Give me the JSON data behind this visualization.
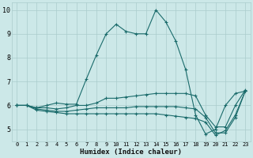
{
  "xlabel": "Humidex (Indice chaleur)",
  "bg_color": "#cce8e8",
  "line_color": "#1a6b6b",
  "grid_color": "#aacccc",
  "xlim": [
    -0.5,
    23.5
  ],
  "ylim": [
    4.5,
    10.3
  ],
  "xticks": [
    0,
    1,
    2,
    3,
    4,
    5,
    6,
    7,
    8,
    9,
    10,
    11,
    12,
    13,
    14,
    15,
    16,
    17,
    18,
    19,
    20,
    21,
    22,
    23
  ],
  "yticks": [
    5,
    6,
    7,
    8,
    9,
    10
  ],
  "lines": [
    {
      "x": [
        0,
        1,
        2,
        3,
        4,
        5,
        6,
        7,
        8,
        9,
        10,
        11,
        12,
        13,
        14,
        15,
        16,
        17,
        18,
        19,
        20,
        21,
        22,
        23
      ],
      "y": [
        6.0,
        6.0,
        5.9,
        6.0,
        6.1,
        6.05,
        6.05,
        7.1,
        8.1,
        9.0,
        9.4,
        9.1,
        9.0,
        9.0,
        10.0,
        9.5,
        8.7,
        7.5,
        5.6,
        4.8,
        5.0,
        6.0,
        6.5,
        6.6
      ]
    },
    {
      "x": [
        0,
        1,
        2,
        3,
        4,
        5,
        6,
        7,
        8,
        9,
        10,
        11,
        12,
        13,
        14,
        15,
        16,
        17,
        18,
        19,
        20,
        21,
        22,
        23
      ],
      "y": [
        6.0,
        6.0,
        5.9,
        5.9,
        5.85,
        5.9,
        6.0,
        6.0,
        6.1,
        6.3,
        6.3,
        6.35,
        6.4,
        6.45,
        6.5,
        6.5,
        6.5,
        6.5,
        6.4,
        5.6,
        5.1,
        5.1,
        6.0,
        6.65
      ]
    },
    {
      "x": [
        0,
        1,
        2,
        3,
        4,
        5,
        6,
        7,
        8,
        9,
        10,
        11,
        12,
        13,
        14,
        15,
        16,
        17,
        18,
        19,
        20,
        21,
        22,
        23
      ],
      "y": [
        6.0,
        6.0,
        5.85,
        5.8,
        5.75,
        5.75,
        5.8,
        5.85,
        5.9,
        5.9,
        5.9,
        5.9,
        5.95,
        5.95,
        5.95,
        5.95,
        5.95,
        5.9,
        5.85,
        5.5,
        4.85,
        4.85,
        5.5,
        6.6
      ]
    },
    {
      "x": [
        0,
        1,
        2,
        3,
        4,
        5,
        6,
        7,
        8,
        9,
        10,
        11,
        12,
        13,
        14,
        15,
        16,
        17,
        18,
        19,
        20,
        21,
        22,
        23
      ],
      "y": [
        6.0,
        6.0,
        5.8,
        5.75,
        5.7,
        5.65,
        5.65,
        5.65,
        5.65,
        5.65,
        5.65,
        5.65,
        5.65,
        5.65,
        5.65,
        5.6,
        5.55,
        5.5,
        5.45,
        5.3,
        4.75,
        4.95,
        5.6,
        6.6
      ]
    }
  ],
  "marker": "+",
  "markersize": 3,
  "linewidth": 0.8,
  "tick_fontsize_x": 5,
  "tick_fontsize_y": 6,
  "xlabel_fontsize": 6.5
}
